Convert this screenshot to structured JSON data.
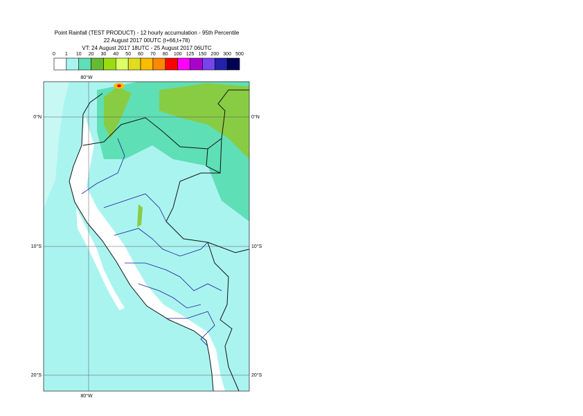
{
  "header": {
    "title": "Point Rainfall (TEST PRODUCT) - 12 hourly accumulation - 95th Percentile",
    "base_time": "22 August 2017 00UTC (t+66,t+78)",
    "valid_time": "VT: 24 August 2017 18UTC - 25 August 2017 06UTC"
  },
  "legend": {
    "bins": [
      0,
      1,
      10,
      20,
      30,
      40,
      50,
      60,
      70,
      80,
      100,
      125,
      150,
      200,
      300,
      500
    ],
    "colors": [
      "#ffffff",
      "#aaf4f0",
      "#5fdfb5",
      "#66bb33",
      "#99dd11",
      "#ddff66",
      "#dddd22",
      "#ffbb00",
      "#ff8800",
      "#ff0000",
      "#ff00ff",
      "#aa00cc",
      "#7744ee",
      "#2222aa",
      "#000055"
    ]
  },
  "map": {
    "lon_labels": [
      "80°W"
    ],
    "lat_labels": [
      "0°N",
      "10°S",
      "20°S"
    ]
  }
}
